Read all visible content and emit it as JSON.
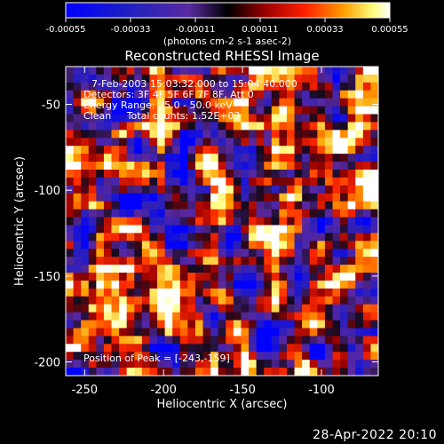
{
  "chart_data": {
    "type": "heatmap",
    "title": "Reconstructed RHESSI Image",
    "xlabel": "Heliocentric X (arcsec)",
    "ylabel": "Heliocentric Y (arcsec)",
    "xlim": [
      -262,
      -64
    ],
    "ylim": [
      -208,
      -28
    ],
    "x_ticks": [
      -250,
      -200,
      -150,
      -100
    ],
    "y_ticks": [
      -50,
      -100,
      -150,
      -200
    ],
    "colorbar": {
      "range": [
        -0.00055,
        0.00055
      ],
      "ticks": [
        -0.00055,
        -0.00033,
        -0.00011,
        0.00011,
        0.00033,
        0.00055
      ],
      "tick_labels": [
        "-0.00055",
        "-0.00033",
        "-0.00011",
        "0.00011",
        "0.00033",
        "0.00055"
      ],
      "unit_label": "(photons cm-2 s-1 asec-2)",
      "colors": [
        "#0000ff",
        "#5a2aa0",
        "#000000",
        "#a00000",
        "#ff2000",
        "#ffa000",
        "#ffffa0",
        "#ffffff"
      ]
    },
    "annotations": {
      "time_range": "7-Feb-2003 15:03:32.000 to 15:04:40.000",
      "detectors": "Detectors: 3F 4F 5F 6F 7F 8F, Att 0",
      "energy": "Energy Range: 25.0 - 50.0 keV",
      "clean": "Clean     Total counts: 1.52E+03",
      "peak": "Position of Peak = [-243,-159]"
    },
    "peak_position": [
      -243,
      -159
    ],
    "grid_size": [
      41,
      39
    ],
    "value_range": [
      -0.00055,
      0.00055
    ]
  },
  "footer": {
    "timestamp": "28-Apr-2022 20:10"
  }
}
